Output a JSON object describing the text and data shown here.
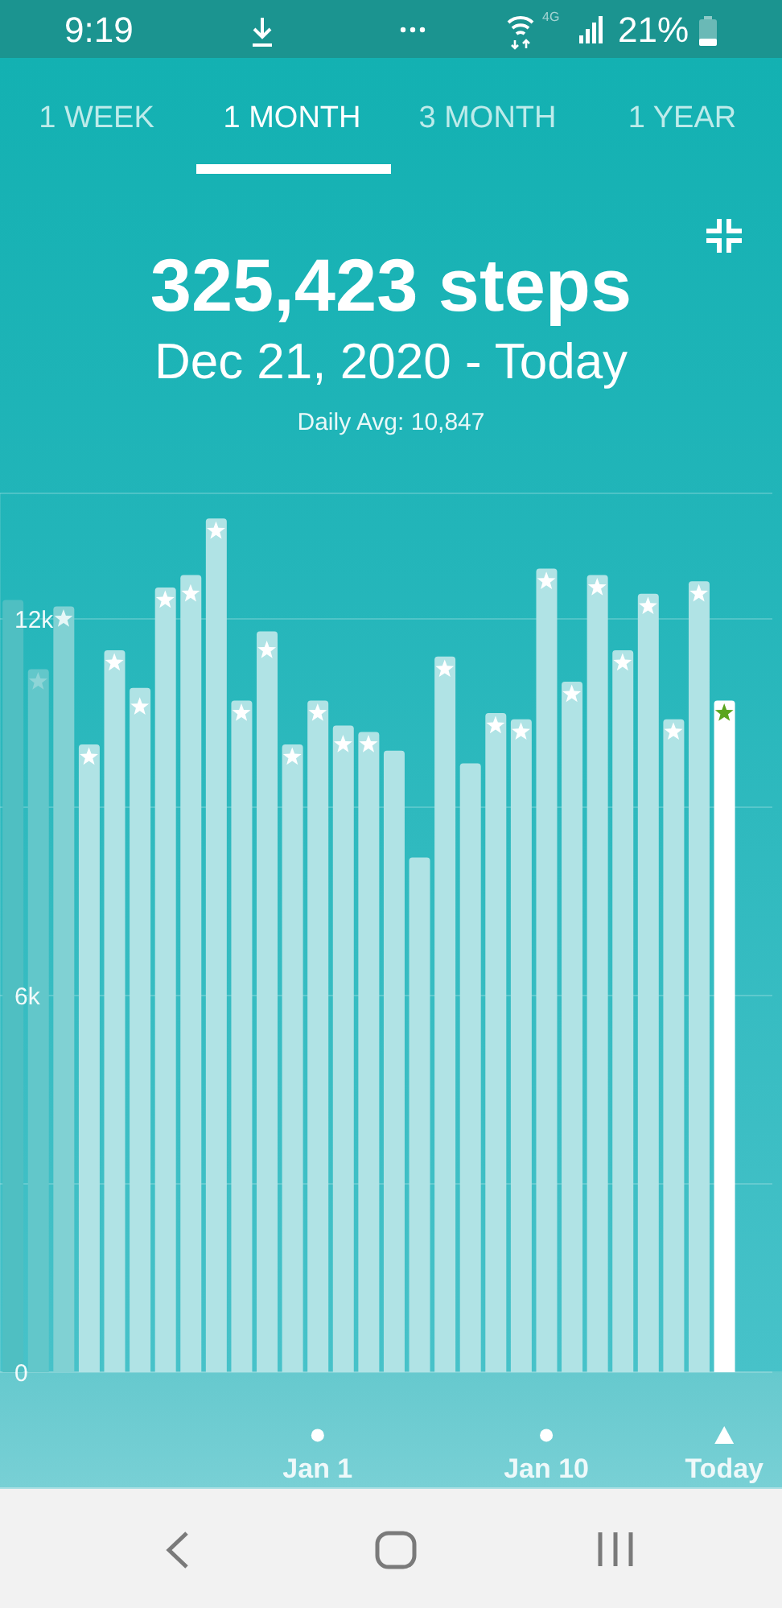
{
  "chart_data": {
    "type": "bar",
    "title": "325,423 steps",
    "subtitle": "Dec 21, 2020 - Today",
    "annotations": [
      "Daily Avg: 10,847",
      "9:19",
      "4G",
      "21%",
      "1 WEEK",
      "1 MONTH",
      "3 MONTH",
      "1 YEAR"
    ],
    "categories": [
      null,
      null,
      null,
      null,
      null,
      null,
      null,
      null,
      null,
      null,
      null,
      null,
      "Jan 1",
      null,
      null,
      null,
      null,
      null,
      null,
      null,
      null,
      "Jan 10",
      null,
      null,
      null,
      null,
      null,
      null,
      "Today"
    ],
    "series": [
      {
        "colors": [
          "#4fbfc2",
          "#62c7ca",
          "#80d1d3",
          "#b0e3e5",
          "#b0e3e5",
          "#b0e3e5",
          "#b0e3e5",
          "#b0e3e5",
          "#b0e3e5",
          "#b0e3e5",
          "#b0e3e5",
          "#b0e3e5",
          "#b0e3e5",
          "#b0e3e5",
          "#b0e3e5",
          "#b0e3e5",
          "#b0e3e5",
          "#b0e3e5",
          "#b0e3e5",
          "#b0e3e5",
          "#b0e3e5",
          "#b0e3e5",
          "#b0e3e5",
          "#b0e3e5",
          "#b0e3e5",
          "#b0e3e5",
          "#b0e3e5",
          "#b0e3e5",
          "#ffffff"
        ],
        "values": [
          12300,
          11200,
          12200,
          10000,
          11500,
          10900,
          12500,
          12700,
          13600,
          10700,
          11800,
          10000,
          10700,
          10300,
          10200,
          9900,
          8200,
          11400,
          9700,
          10500,
          10400,
          12800,
          11000,
          12700,
          11500,
          12400,
          10400,
          12600,
          10700
        ]
      },
      {
        "type": "scatter",
        "marker": "star",
        "colors": [
          null,
          "#8ed5d7",
          "#e6f7f7",
          "#ffffff",
          "#ffffff",
          "#ffffff",
          "#ffffff",
          "#ffffff",
          "#ffffff",
          "#ffffff",
          "#ffffff",
          "#ffffff",
          "#ffffff",
          "#ffffff",
          "#ffffff",
          null,
          null,
          "#ffffff",
          null,
          "#ffffff",
          "#ffffff",
          "#ffffff",
          "#ffffff",
          "#ffffff",
          "#ffffff",
          "#ffffff",
          "#ffffff",
          "#ffffff",
          "#5aa51e"
        ],
        "values": [
          null,
          11000,
          12000,
          9800,
          11300,
          10600,
          12300,
          12400,
          13400,
          10500,
          11500,
          9800,
          10500,
          10000,
          10000,
          null,
          null,
          11200,
          null,
          10300,
          10200,
          12600,
          10800,
          12500,
          11300,
          12200,
          10200,
          12400,
          10500
        ]
      }
    ],
    "ylim": [
      0,
      14000
    ],
    "yticks": [
      0,
      {
        "value": 3000,
        "label": null
      },
      {
        "value": 6000,
        "label": "6k"
      },
      {
        "value": 9000,
        "label": null
      },
      {
        "value": 12000,
        "label": "12k"
      }
    ],
    "grid": "y"
  }
}
